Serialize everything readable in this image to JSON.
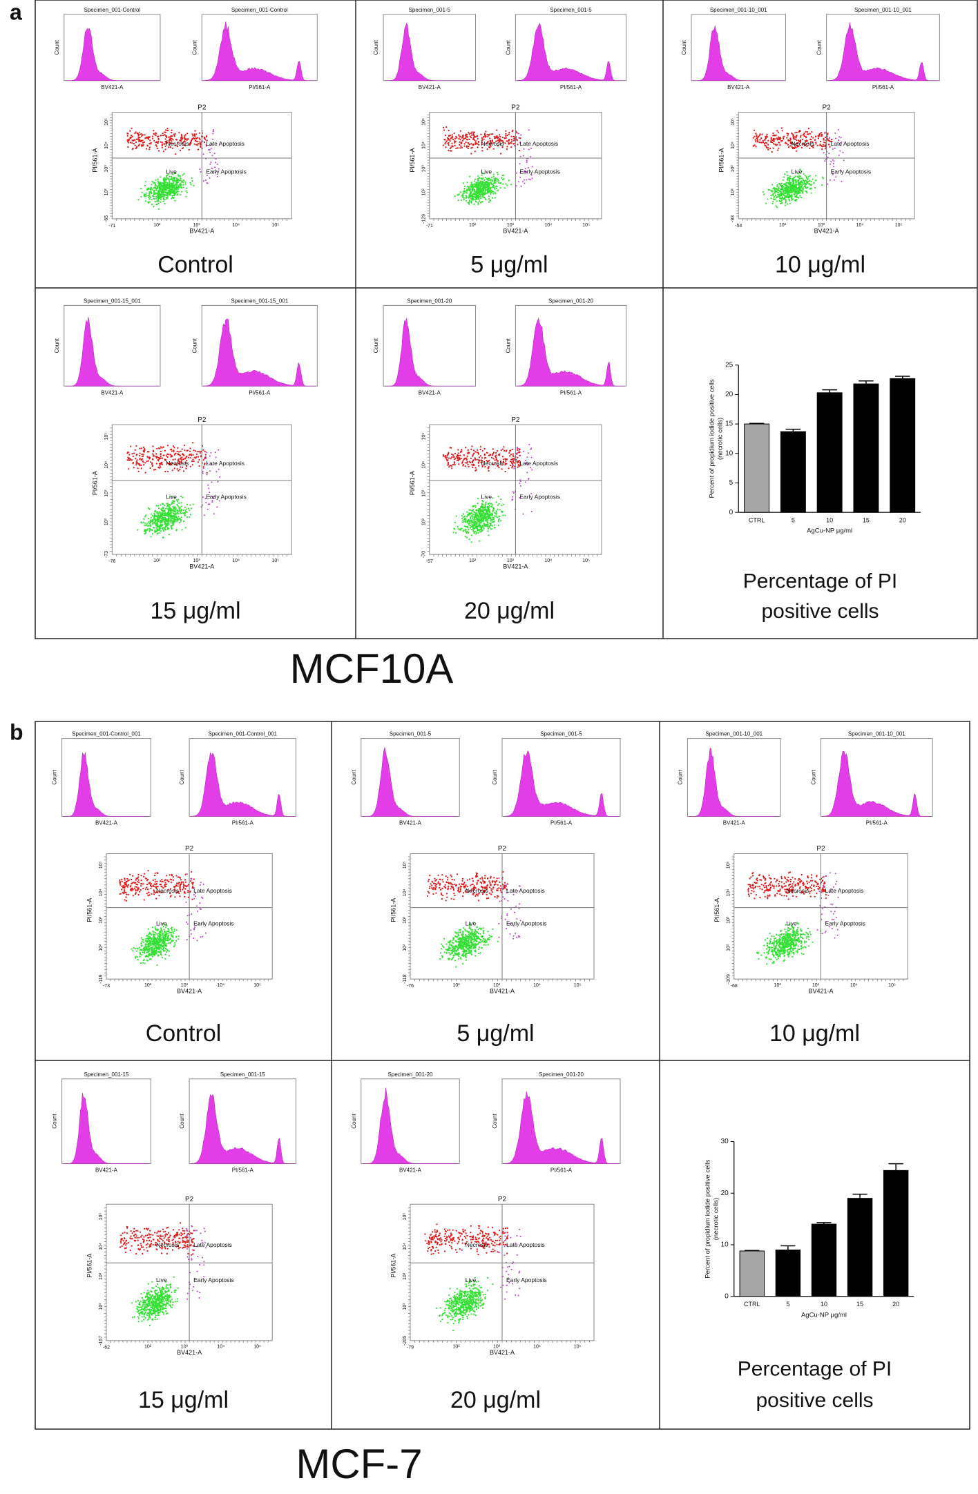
{
  "flow_labels": {
    "gate": "P2",
    "quadrants": [
      "Necrosis",
      "Late Apoptosis",
      "Live",
      "Early Apoptosis"
    ],
    "x_axis": "BV421-A",
    "y_axis": "PI/561-A",
    "hist_y": "Count",
    "decades": [
      "10²",
      "10³",
      "10⁴",
      "10⁵"
    ]
  },
  "panels": [
    {
      "label": "a",
      "cell_line": "MCF10A",
      "summary_caption": [
        "Percentage of PI",
        "positive cells"
      ],
      "cells": [
        {
          "caption": "Control",
          "hist_title": "Specimen_001-Control",
          "x_min": "-71",
          "y_min": "-65"
        },
        {
          "caption": "5 μg/ml",
          "hist_title": "Specimen_001-5",
          "x_min": "-71",
          "y_min": "-129"
        },
        {
          "caption": "10 μg/ml",
          "hist_title": "Specimen_001-10_001",
          "x_min": "-54",
          "y_min": "-93"
        },
        {
          "caption": "15 μg/ml",
          "hist_title": "Specimen_001-15_001",
          "x_min": "-76",
          "y_min": "-73"
        },
        {
          "caption": "20 μg/ml",
          "hist_title": "Specimen_001-20",
          "x_min": "-57",
          "y_min": "-70"
        }
      ]
    },
    {
      "label": "b",
      "cell_line": "MCF-7",
      "summary_caption": [
        "Percentage of PI",
        "positive cells"
      ],
      "cells": [
        {
          "caption": "Control",
          "hist_title": "Specimen_001-Control_001",
          "x_min": "-73",
          "y_min": "-119"
        },
        {
          "caption": "5 μg/ml",
          "hist_title": "Specimen_001-5",
          "x_min": "-76",
          "y_min": "-118"
        },
        {
          "caption": "10 μg/ml",
          "hist_title": "Specimen_001-10_001",
          "x_min": "-68",
          "y_min": "-109"
        },
        {
          "caption": "15 μg/ml",
          "hist_title": "Specimen_001-15",
          "x_min": "-62",
          "y_min": "-157"
        },
        {
          "caption": "20 μg/ml",
          "hist_title": "Specimen_001-20",
          "x_min": "-79",
          "y_min": "-205"
        }
      ]
    }
  ],
  "chart_data": [
    {
      "type": "bar",
      "categories": [
        "CTRL",
        "5",
        "10",
        "15",
        "20"
      ],
      "values": [
        15,
        13.7,
        20.3,
        21.8,
        22.7
      ],
      "errors": [
        0.1,
        0.4,
        0.5,
        0.5,
        0.4
      ],
      "colors": [
        "#a6a6a6",
        "#000000",
        "#000000",
        "#000000",
        "#000000"
      ],
      "xlabel": "AgCu-NP μg/ml",
      "ylabel": [
        "Percent of propidium iodide positive cells",
        "(necrotic cells)"
      ],
      "ylim": [
        0,
        25
      ],
      "yticks": [
        0,
        5,
        10,
        15,
        20,
        25
      ]
    },
    {
      "type": "bar",
      "categories": [
        "CTRL",
        "5",
        "10",
        "15",
        "20"
      ],
      "values": [
        8.8,
        9,
        14,
        19,
        24.4
      ],
      "errors": [
        0.1,
        0.8,
        0.3,
        0.8,
        1.3
      ],
      "colors": [
        "#a6a6a6",
        "#000000",
        "#000000",
        "#000000",
        "#000000"
      ],
      "xlabel": "AgCu-NP μg/ml",
      "ylabel": [
        "Percent of propidium iodide positive cells",
        "(necrotic cells)"
      ],
      "ylim": [
        0,
        30
      ],
      "yticks": [
        0,
        10,
        20,
        30
      ]
    }
  ]
}
